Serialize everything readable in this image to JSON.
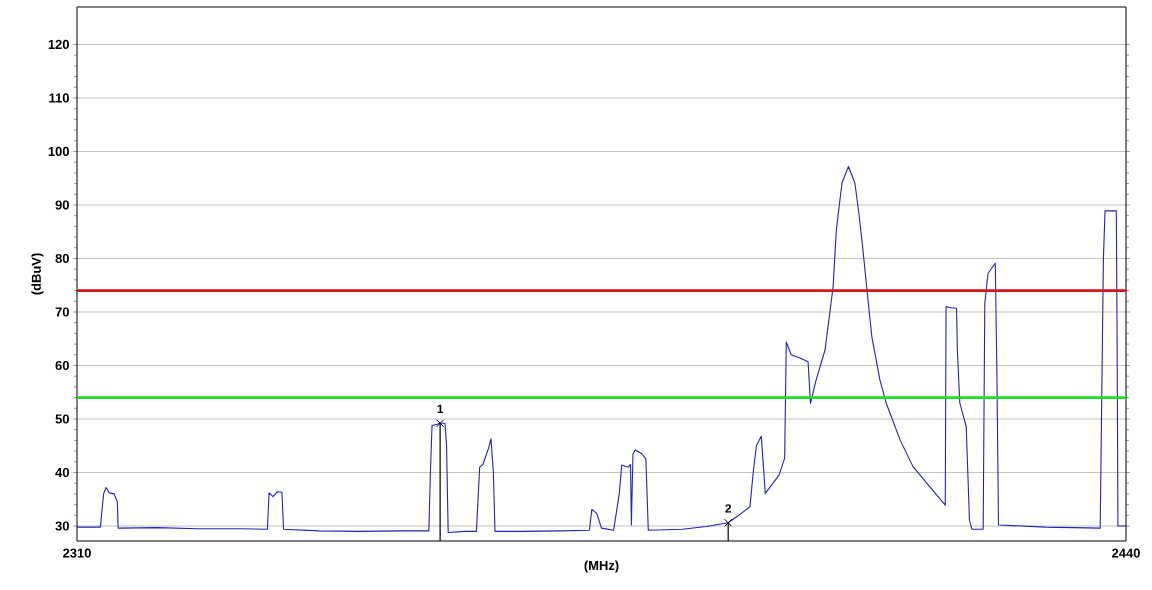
{
  "chart_data": {
    "type": "line",
    "xlabel": "(MHz)",
    "ylabel": "(dBuV)",
    "xlim": [
      2310,
      2440
    ],
    "ylim": [
      27.2,
      127
    ],
    "xticks": [
      2310,
      2440
    ],
    "yticks": [
      30,
      40,
      50,
      60,
      70,
      80,
      90,
      100,
      110,
      120
    ],
    "grid": "y",
    "marker": "none",
    "line_style": "solid",
    "series": [
      {
        "color": "#2323b4",
        "x": [
          2310,
          2312.9,
          2313.1,
          2313.3,
          2313.6,
          2314.0,
          2314.6,
          2315.0,
          2315.1,
          2320,
          2325,
          2330,
          2333.6,
          2333.8,
          2334.3,
          2334.8,
          2335.4,
          2335.6,
          2340,
          2345,
          2350,
          2353.6,
          2353.8,
          2354.0,
          2354.6,
          2355.0,
          2355.6,
          2355.8,
          2356.0,
          2358,
          2359.5,
          2359.7,
          2359.9,
          2360.3,
          2361.0,
          2361.3,
          2361.6,
          2361.8,
          2365,
          2370,
          2373.5,
          2373.8,
          2374.4,
          2375.0,
          2376.5,
          2377.2,
          2377.5,
          2378.3,
          2378.6,
          2378.7,
          2378.9,
          2379.2,
          2380.0,
          2380.5,
          2380.8,
          2385,
          2388,
          2390.7,
          2392,
          2393.4,
          2393.8,
          2394.2,
          2394.8,
          2395.3,
          2396.0,
          2397.0,
          2397.7,
          2397.9,
          2398.5,
          2399.6,
          2400.6,
          2400.9,
          2401.6,
          2402.7,
          2403.7,
          2404.1,
          2404.8,
          2405.6,
          2406.4,
          2406.9,
          2407.4,
          2407.9,
          2408.5,
          2409.5,
          2410.3,
          2412.0,
          2413.6,
          2415.7,
          2417.6,
          2417.7,
          2418.3,
          2419.0,
          2419.1,
          2419.4,
          2420.2,
          2420.6,
          2420.9,
          2422.3,
          2422.5,
          2422.9,
          2423.8,
          2424.0,
          2424.2,
          2430,
          2436.8,
          2437.2,
          2437.4,
          2438.8,
          2438.9,
          2439.0,
          2440
        ],
        "values": [
          29.8,
          29.8,
          33,
          36,
          37.2,
          36.2,
          36.0,
          34.5,
          29.6,
          29.7,
          29.5,
          29.5,
          29.4,
          36.2,
          35.5,
          36.4,
          36.3,
          29.4,
          29.1,
          29.0,
          29.1,
          29.1,
          40,
          48.8,
          49.0,
          49.2,
          49.2,
          45,
          28.8,
          29.0,
          29.0,
          35,
          41,
          41.5,
          44.5,
          46.3,
          40,
          29.0,
          29.0,
          29.1,
          29.2,
          33.1,
          32.4,
          29.6,
          29.2,
          36,
          41.4,
          41.0,
          41.5,
          30.2,
          43.5,
          44.2,
          43.5,
          42.5,
          29.2,
          29.4,
          29.9,
          30.6,
          32.0,
          33.6,
          40,
          45,
          46.8,
          36.1,
          37.5,
          39.5,
          42.7,
          64.4,
          62,
          61.4,
          60.7,
          52.9,
          57.3,
          62.9,
          74.7,
          85.3,
          94.1,
          97.2,
          94.1,
          88.4,
          81.6,
          74.1,
          65.4,
          57.3,
          52.9,
          46.1,
          41.1,
          37.3,
          33.9,
          71.0,
          70.8,
          70.7,
          62.9,
          53,
          48.6,
          31.1,
          29.4,
          29.4,
          71.6,
          77.2,
          79.1,
          58.5,
          30.2,
          29.8,
          29.6,
          80,
          88.9,
          88.9,
          63.8,
          30.0,
          30.0
        ]
      },
      {
        "type": "lollipop",
        "color": "#000000",
        "marker": "cross",
        "x": [
          2355,
          2390.7
        ],
        "values": [
          49.2,
          30.6
        ]
      }
    ],
    "ref_lines": [
      {
        "axis": "y",
        "value": 74,
        "color": "#d01818"
      },
      {
        "axis": "y",
        "value": 54,
        "color": "#22dd22"
      }
    ],
    "annotations": [
      {
        "text": "1",
        "x": 2355,
        "y": 49.2
      },
      {
        "text": "2",
        "x": 2390.7,
        "y": 30.6
      }
    ]
  }
}
